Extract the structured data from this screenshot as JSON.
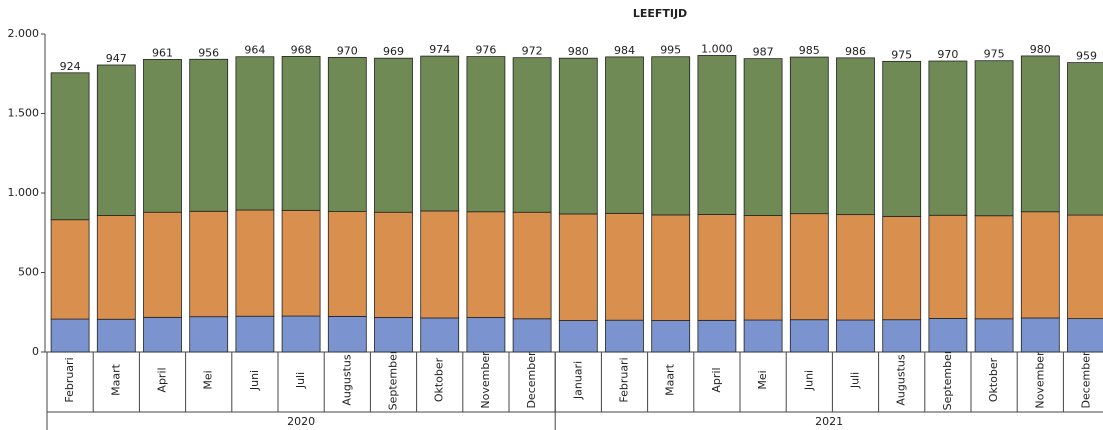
{
  "chart_data": {
    "type": "stacked-bar",
    "title": "LEEFTIJD",
    "groups": [
      {
        "name": "2020",
        "categories": [
          "Februari",
          "Maart",
          "April",
          "Mei",
          "Juni",
          "Juli",
          "Augustus",
          "September",
          "Oktober",
          "November",
          "December"
        ]
      },
      {
        "name": "2021",
        "categories": [
          "Januari",
          "Februari",
          "Maart",
          "April",
          "Mei",
          "Juni",
          "Juli",
          "Augustus",
          "September",
          "Oktober",
          "November",
          "December"
        ]
      }
    ],
    "series": [
      {
        "color": "#7b93cf",
        "values": [
          207,
          206,
          218,
          222,
          225,
          226,
          224,
          217,
          214,
          217,
          209,
          198,
          200,
          198,
          199,
          201,
          203,
          201,
          203,
          211,
          209,
          214,
          210
        ]
      },
      {
        "color": "#d98f4e",
        "values": [
          625,
          652,
          661,
          663,
          668,
          665,
          659,
          662,
          673,
          665,
          670,
          670,
          672,
          664,
          666,
          657,
          667,
          663,
          650,
          649,
          648,
          668,
          651
        ]
      },
      {
        "color": "#6f8a55",
        "values": [
          924,
          947,
          961,
          956,
          964,
          968,
          970,
          969,
          974,
          976,
          972,
          980,
          984,
          995,
          1000,
          987,
          985,
          986,
          975,
          970,
          975,
          980,
          959
        ],
        "value_labels": [
          "924",
          "947",
          "961",
          "956",
          "964",
          "968",
          "970",
          "969",
          "974",
          "976",
          "972",
          "980",
          "984",
          "995",
          "1.000",
          "987",
          "985",
          "986",
          "975",
          "970",
          "975",
          "980",
          "959"
        ]
      }
    ],
    "ylim": [
      0,
      2000
    ],
    "yticks": [
      0,
      500,
      {
        "value": 1000,
        "label": "1.000"
      },
      {
        "value": 1500,
        "label": "1.500"
      },
      {
        "value": 2000,
        "label": "2.000"
      }
    ]
  }
}
